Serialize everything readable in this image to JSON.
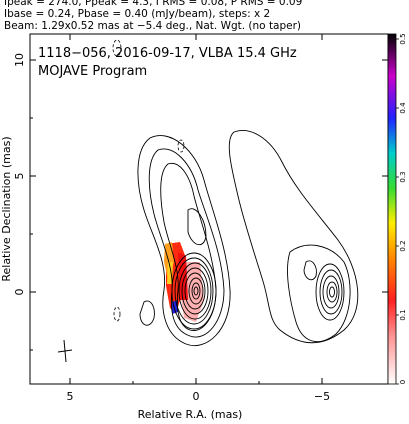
{
  "header": {
    "line1": "Ipeak = 274.0, Ppeak = 4.3, I RMS = 0.08, P RMS = 0.09",
    "line2": "Ibase = 0.24, Pbase = 0.40 (mJy/beam), steps: x 2",
    "line3": "Beam: 1.29x0.52 mas at −5.4 deg., Nat. Wgt. (no taper)"
  },
  "plot": {
    "title": "1118−056, 2016-09-17, VLBA 15.4 GHz",
    "subtitle": "MOJAVE Program",
    "xlabel": "Relative R.A. (mas)",
    "ylabel": "Relative Declination (mas)",
    "xticks": [
      "5",
      "0",
      "−5"
    ],
    "yticks": [
      "10",
      "5",
      "0"
    ],
    "colorbar_ticks": [
      "0.5",
      "0.4",
      "0.3",
      "0.2",
      "0.1",
      "0"
    ]
  }
}
